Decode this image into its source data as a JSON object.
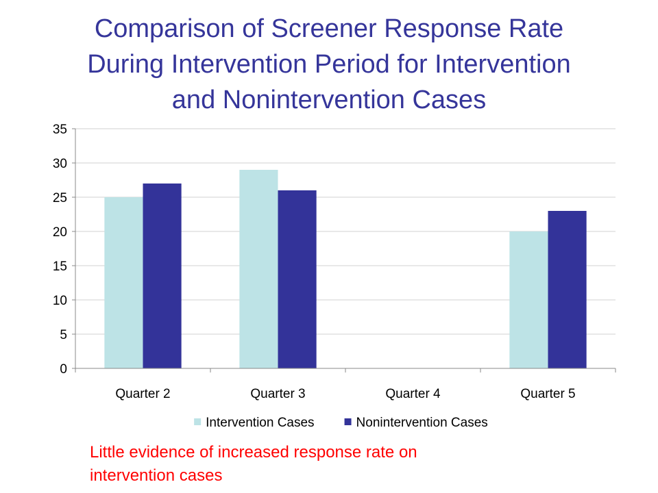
{
  "slide": {
    "title_lines": [
      "Comparison of Screener Response Rate",
      "During Intervention Period for Intervention",
      "and Nonintervention Cases"
    ],
    "note_lines": [
      "Little evidence of increased response rate on",
      "intervention cases"
    ]
  },
  "chart_data": {
    "type": "bar",
    "title": "Comparison of Screener Response Rate During Intervention Period for Intervention and Nonintervention Cases",
    "categories": [
      "Quarter 2",
      "Quarter 3",
      "Quarter 4",
      "Quarter 5"
    ],
    "series": [
      {
        "name": "Intervention Cases",
        "color": "#bde3e6",
        "values": [
          25,
          29,
          null,
          20
        ]
      },
      {
        "name": "Nonintervention Cases",
        "color": "#333399",
        "values": [
          27,
          26,
          null,
          23
        ]
      }
    ],
    "y_ticks": [
      0,
      5,
      10,
      15,
      20,
      25,
      30,
      35
    ],
    "ylim": [
      0,
      35
    ],
    "grid": true,
    "legend_position": "bottom"
  }
}
